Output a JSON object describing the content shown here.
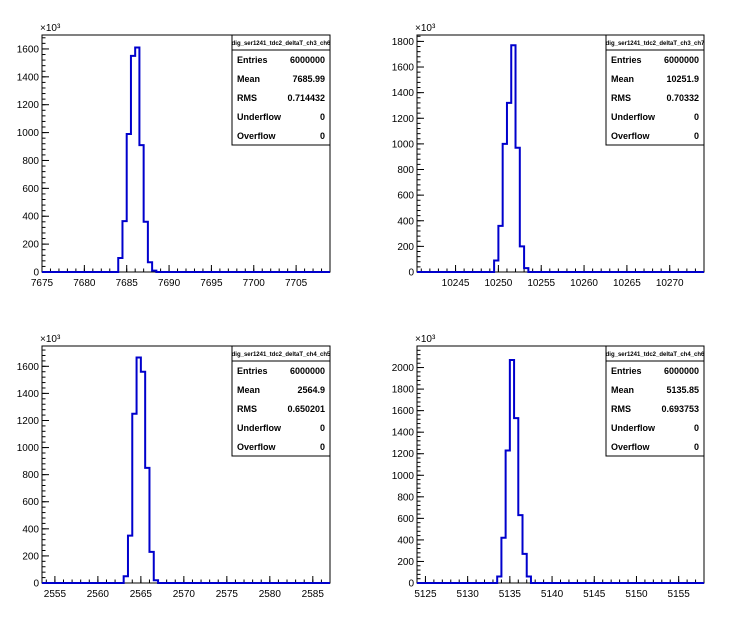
{
  "chart_data": [
    {
      "type": "histogram",
      "title": "",
      "stats_title": "dig_ser1241_tdc2_deltaT_ch3_ch6",
      "xlabel": "",
      "ylabel": "",
      "xlim": [
        7675,
        7709
      ],
      "ylim": [
        0,
        1700
      ],
      "y_multiplier": "×10³",
      "xticks": [
        7675,
        7680,
        7685,
        7690,
        7695,
        7700,
        7705
      ],
      "yticks": [
        0,
        200,
        400,
        600,
        800,
        1000,
        1200,
        1400,
        1600
      ],
      "bins": {
        "start": 7684,
        "width": 0.5,
        "values": [
          100,
          365,
          990,
          1550,
          1610,
          910,
          360,
          70,
          10
        ]
      },
      "stats": [
        {
          "label": "Entries",
          "value": "6000000"
        },
        {
          "label": "Mean",
          "value": "7685.99"
        },
        {
          "label": "RMS",
          "value": "0.714432"
        },
        {
          "label": "Underflow",
          "value": "0"
        },
        {
          "label": "Overflow",
          "value": "0"
        }
      ]
    },
    {
      "type": "histogram",
      "title": "",
      "stats_title": "dig_ser1241_tdc2_deltaT_ch3_ch7",
      "xlabel": "",
      "ylabel": "",
      "xlim": [
        10240.5,
        10274
      ],
      "ylim": [
        0,
        1850
      ],
      "y_multiplier": "×10³",
      "xticks": [
        10245,
        10250,
        10255,
        10260,
        10265,
        10270
      ],
      "yticks": [
        0,
        200,
        400,
        600,
        800,
        1000,
        1200,
        1400,
        1600,
        1800
      ],
      "bins": {
        "start": 10249.5,
        "width": 0.5,
        "values": [
          90,
          360,
          1000,
          1320,
          1770,
          970,
          200,
          30
        ]
      },
      "stats": [
        {
          "label": "Entries",
          "value": "6000000"
        },
        {
          "label": "Mean",
          "value": "10251.9"
        },
        {
          "label": "RMS",
          "value": "0.70332"
        },
        {
          "label": "Underflow",
          "value": "0"
        },
        {
          "label": "Overflow",
          "value": "0"
        }
      ]
    },
    {
      "type": "histogram",
      "title": "",
      "stats_title": "dig_ser1241_tdc2_deltaT_ch4_ch5",
      "xlabel": "",
      "ylabel": "",
      "xlim": [
        2553.5,
        2587
      ],
      "ylim": [
        0,
        1750
      ],
      "y_multiplier": "×10³",
      "xticks": [
        2555,
        2560,
        2565,
        2570,
        2575,
        2580,
        2585
      ],
      "yticks": [
        0,
        200,
        400,
        600,
        800,
        1000,
        1200,
        1400,
        1600
      ],
      "bins": {
        "start": 2563,
        "width": 0.5,
        "values": [
          50,
          350,
          1250,
          1665,
          1560,
          850,
          230,
          20
        ]
      },
      "stats": [
        {
          "label": "Entries",
          "value": "6000000"
        },
        {
          "label": "Mean",
          "value": "2564.9"
        },
        {
          "label": "RMS",
          "value": "0.650201"
        },
        {
          "label": "Underflow",
          "value": "0"
        },
        {
          "label": "Overflow",
          "value": "0"
        }
      ]
    },
    {
      "type": "histogram",
      "title": "",
      "stats_title": "dig_ser1241_tdc2_deltaT_ch4_ch6",
      "xlabel": "",
      "ylabel": "",
      "xlim": [
        5124,
        5158
      ],
      "ylim": [
        0,
        2200
      ],
      "y_multiplier": "×10³",
      "xticks": [
        5125,
        5130,
        5135,
        5140,
        5145,
        5150,
        5155
      ],
      "yticks": [
        0,
        200,
        400,
        600,
        800,
        1000,
        1200,
        1400,
        1600,
        1800,
        2000
      ],
      "bins": {
        "start": 5133.5,
        "width": 0.5,
        "values": [
          60,
          420,
          1230,
          2070,
          1530,
          630,
          270,
          60
        ]
      },
      "stats": [
        {
          "label": "Entries",
          "value": "6000000"
        },
        {
          "label": "Mean",
          "value": "5135.85"
        },
        {
          "label": "RMS",
          "value": "0.693753"
        },
        {
          "label": "Underflow",
          "value": "0"
        },
        {
          "label": "Overflow",
          "value": "0"
        }
      ]
    }
  ],
  "colors": {
    "histogram_line": "#0000cc",
    "axis": "#000000",
    "background": "#ffffff"
  }
}
